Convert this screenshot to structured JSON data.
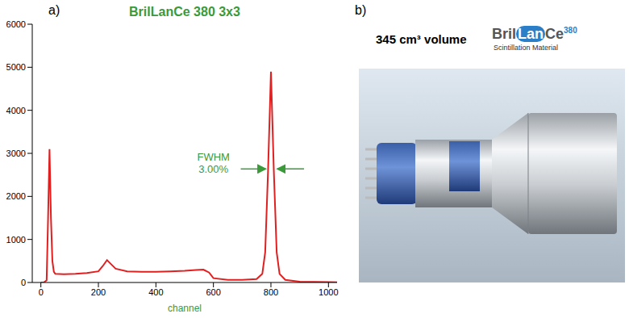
{
  "chart_data": {
    "type": "line",
    "label": "a)",
    "title": "BrilLanCe 380 3x3",
    "x_label": "channel",
    "annotation": "FWHM\n3.00%",
    "color": "#e02020",
    "title_color": "#3a9a3a",
    "grid": false,
    "x": [
      0,
      10,
      20,
      25,
      30,
      35,
      40,
      45,
      50,
      80,
      120,
      160,
      200,
      215,
      230,
      245,
      260,
      300,
      350,
      400,
      450,
      500,
      540,
      565,
      585,
      600,
      650,
      700,
      750,
      770,
      780,
      790,
      800,
      810,
      820,
      830,
      850,
      900,
      1000,
      1030
    ],
    "values": [
      0,
      0,
      50,
      1500,
      3100,
      1500,
      500,
      250,
      200,
      190,
      200,
      220,
      260,
      380,
      520,
      420,
      320,
      260,
      250,
      250,
      260,
      270,
      290,
      300,
      230,
      100,
      60,
      60,
      80,
      200,
      700,
      2600,
      4900,
      2600,
      700,
      200,
      60,
      20,
      10,
      5
    ],
    "xlim": [
      -30,
      1030
    ],
    "xticks": [
      0,
      200,
      400,
      600,
      800,
      1000
    ],
    "ylim": [
      0,
      6000
    ],
    "yticks": [
      0,
      1000,
      2000,
      3000,
      4000,
      5000,
      6000
    ]
  },
  "panel_b": {
    "label": "b)",
    "caption": "345 cm³ volume",
    "logo": {
      "parts": [
        "Bril",
        "Lan",
        "Ce"
      ],
      "suffix": "380",
      "subtitle": "Scintillation Material"
    }
  }
}
